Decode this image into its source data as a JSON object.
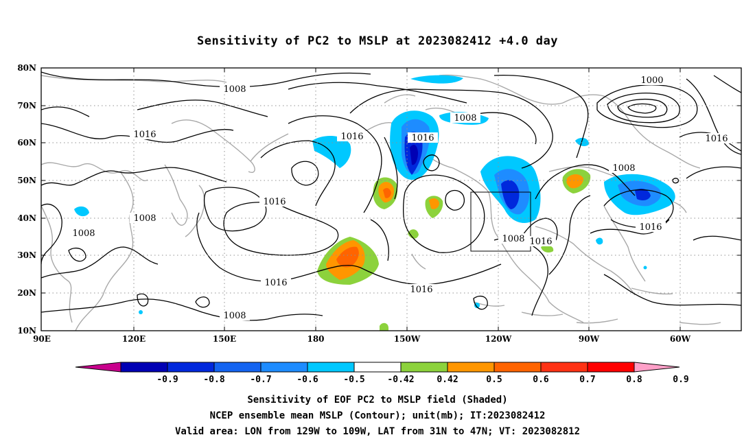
{
  "title": "Sensitivity of PC2 to MSLP at 2023082412 +4.0 day",
  "axes": {
    "lat_labels": [
      "10N",
      "20N",
      "30N",
      "40N",
      "50N",
      "60N",
      "70N",
      "80N"
    ],
    "lon_labels": [
      "90E",
      "120E",
      "150E",
      "180",
      "150W",
      "120W",
      "90W",
      "60W"
    ]
  },
  "contour_labels": [
    "1008",
    "1016",
    "1016",
    "1008",
    "1000",
    "1016",
    "1016",
    "1008",
    "1016",
    "1008",
    "1016",
    "1016",
    "1008",
    "1016",
    "1008"
  ],
  "colorbar": {
    "labels": [
      "-0.9",
      "-0.8",
      "-0.7",
      "-0.6",
      "-0.5",
      "-0.42",
      "0.42",
      "0.5",
      "0.6",
      "0.7",
      "0.8",
      "0.9"
    ],
    "colors": [
      "#c8008c",
      "#0000b4",
      "#0028dc",
      "#1464f0",
      "#1e8cff",
      "#00c8ff",
      "#ffffff",
      "#8cd23c",
      "#ff9600",
      "#ff6400",
      "#ff3214",
      "#ff0000",
      "#ffa0c8"
    ]
  },
  "captions": [
    "Sensitivity of EOF PC2 to MSLP field (Shaded)",
    "NCEP ensemble mean MSLP (Contour); unit(mb); IT:2023082412",
    "Valid area: LON from 129W to 109W, LAT from 31N to 47N; VT: 2023082812"
  ]
}
